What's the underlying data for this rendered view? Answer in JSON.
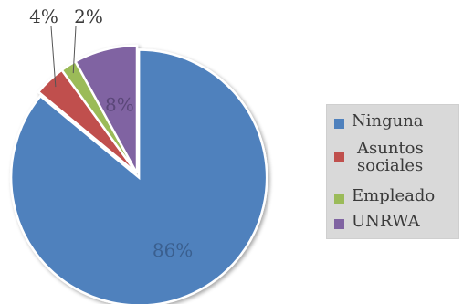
{
  "chart_data": {
    "type": "pie",
    "categories": [
      "Ninguna",
      "Asuntos sociales",
      "Empleado",
      "UNRWA"
    ],
    "values": [
      86,
      4,
      2,
      8
    ],
    "data_labels": [
      "86%",
      "4%",
      "2%",
      "8%"
    ],
    "colors": [
      "#4f81bd",
      "#c0504d",
      "#9bbb59",
      "#8064a2"
    ],
    "exploded_slice": "Ninguna",
    "legend": {
      "placement": "right",
      "entries": [
        {
          "label": "Ninguna",
          "color": "#4f81bd"
        },
        {
          "label": "Asuntos\nsociales",
          "color": "#c0504d"
        },
        {
          "label": "Empleado",
          "color": "#9bbb59"
        },
        {
          "label": "UNRWA",
          "color": "#8064a2"
        }
      ]
    },
    "title": ""
  }
}
